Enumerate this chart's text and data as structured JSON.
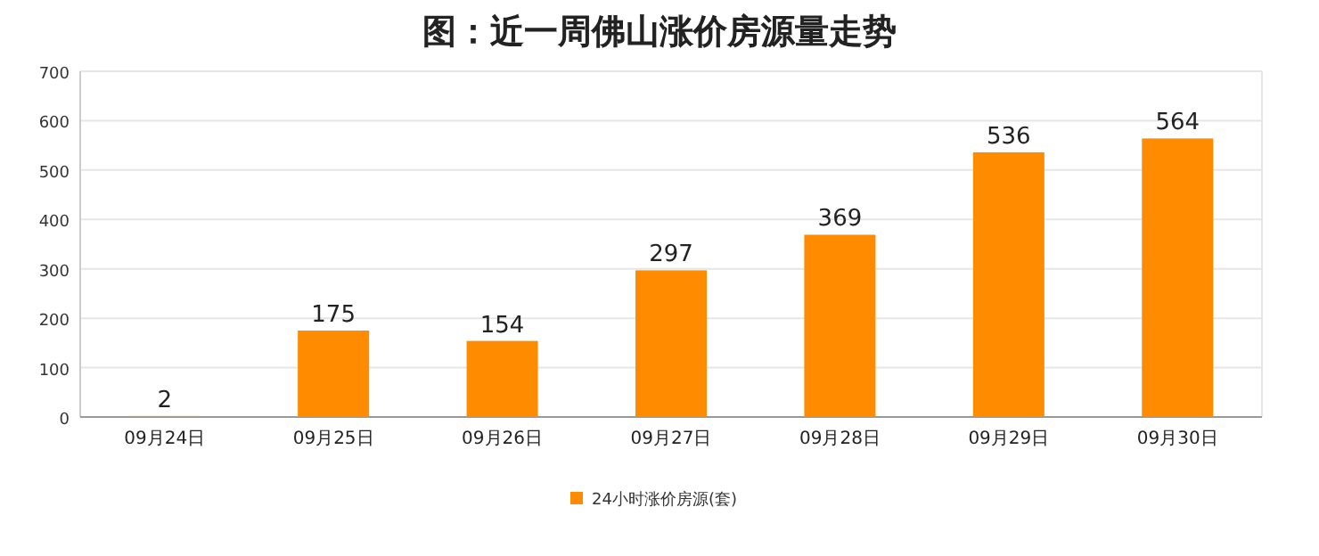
{
  "chart_data": {
    "type": "bar",
    "title": "图：近一周佛山涨价房源量走势",
    "categories": [
      "09月24日",
      "09月25日",
      "09月26日",
      "09月27日",
      "09月28日",
      "09月29日",
      "09月30日"
    ],
    "series": [
      {
        "name": "24小时涨价房源(套)",
        "color": "#ff8c00",
        "values": [
          2,
          175,
          154,
          297,
          369,
          536,
          564
        ]
      }
    ],
    "ylim": [
      0,
      700
    ],
    "yticks": [
      0,
      100,
      200,
      300,
      400,
      500,
      600,
      700
    ],
    "grid": "y",
    "legend": "bottom",
    "data_labels": true
  }
}
